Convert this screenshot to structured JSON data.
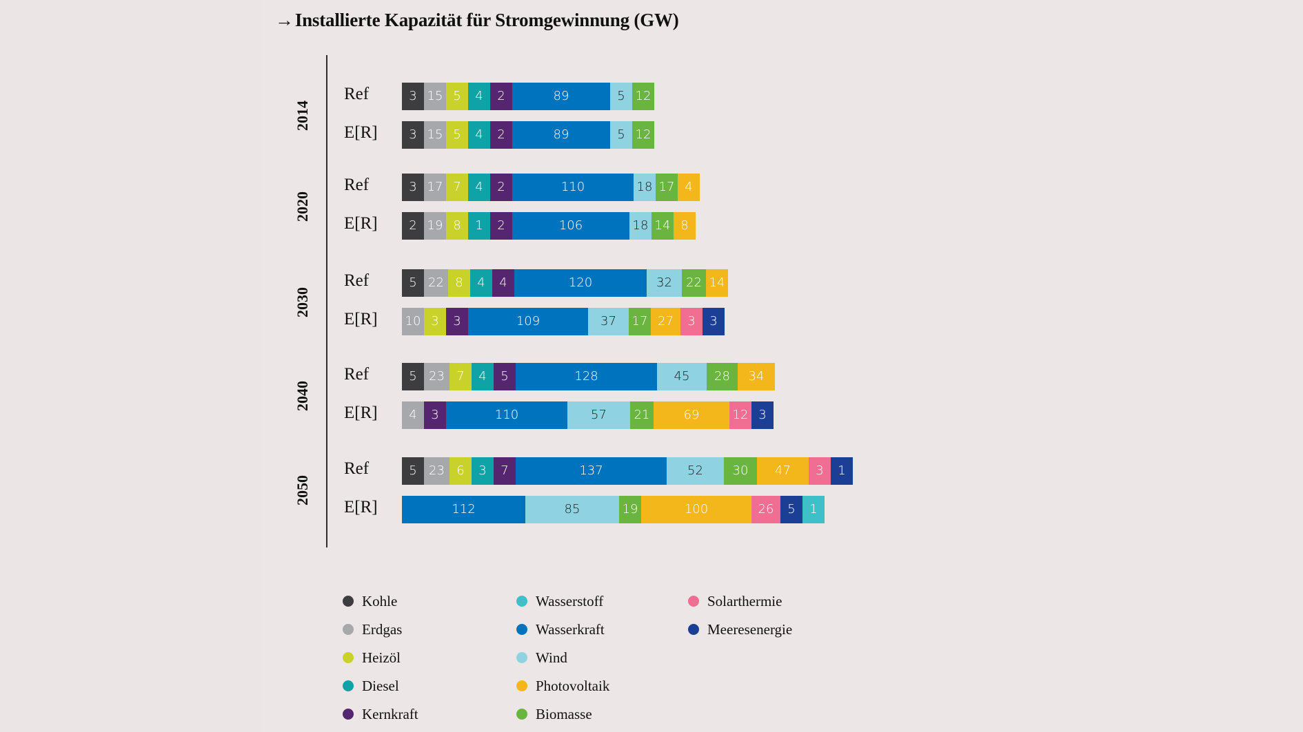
{
  "chart_data": {
    "type": "bar",
    "orientation": "horizontal-stacked",
    "title_arrow": "→",
    "title": "Installierte Kapazität für Stromgewinnung (GW)",
    "unit": "GW",
    "legend_position": "bottom",
    "technologies": [
      {
        "key": "kohle",
        "name": "Kohle",
        "color": "#3d3d3f",
        "text_color": "#ffffff"
      },
      {
        "key": "erdgas",
        "name": "Erdgas",
        "color": "#a7a8ab",
        "text_color": "#ffffff"
      },
      {
        "key": "heizoel",
        "name": "Heizöl",
        "color": "#c9d22a",
        "text_color": "#ffffff"
      },
      {
        "key": "diesel",
        "name": "Diesel",
        "color": "#0fa3a8",
        "text_color": "#ffffff"
      },
      {
        "key": "kernkraft",
        "name": "Kernkraft",
        "color": "#55256f",
        "text_color": "#ffffff"
      },
      {
        "key": "wasserstoff",
        "name": "Wasserstoff",
        "color": "#3fc0c8",
        "text_color": "#ffffff"
      },
      {
        "key": "wasserkraft",
        "name": "Wasserkraft",
        "color": "#0073bf",
        "text_color": "#ffffff"
      },
      {
        "key": "wind",
        "name": "Wind",
        "color": "#8fd3e3",
        "text_color": "#1a1a1a"
      },
      {
        "key": "photovoltaik",
        "name": "Photovoltaik",
        "color": "#f3b71b",
        "text_color": "#ffffff"
      },
      {
        "key": "biomasse",
        "name": "Biomasse",
        "color": "#6ab540",
        "text_color": "#ffffff"
      },
      {
        "key": "solarthermie",
        "name": "Solarthermie",
        "color": "#ef6e92",
        "text_color": "#ffffff"
      },
      {
        "key": "meeresenergie",
        "name": "Meeresenergie",
        "color": "#1b3f94",
        "text_color": "#ffffff"
      }
    ],
    "groups": [
      {
        "year": "2014",
        "rows": [
          {
            "scenario": "Ref",
            "segments": [
              {
                "tech": "kohle",
                "value": 3
              },
              {
                "tech": "erdgas",
                "value": 15
              },
              {
                "tech": "heizoel",
                "value": 5
              },
              {
                "tech": "diesel",
                "value": 4
              },
              {
                "tech": "kernkraft",
                "value": 2
              },
              {
                "tech": "wasserkraft",
                "value": 89
              },
              {
                "tech": "wind",
                "value": 5
              },
              {
                "tech": "biomasse",
                "value": 12
              }
            ]
          },
          {
            "scenario": "E[R]",
            "segments": [
              {
                "tech": "kohle",
                "value": 3
              },
              {
                "tech": "erdgas",
                "value": 15
              },
              {
                "tech": "heizoel",
                "value": 5
              },
              {
                "tech": "diesel",
                "value": 4
              },
              {
                "tech": "kernkraft",
                "value": 2
              },
              {
                "tech": "wasserkraft",
                "value": 89
              },
              {
                "tech": "wind",
                "value": 5
              },
              {
                "tech": "biomasse",
                "value": 12
              }
            ]
          }
        ]
      },
      {
        "year": "2020",
        "rows": [
          {
            "scenario": "Ref",
            "segments": [
              {
                "tech": "kohle",
                "value": 3
              },
              {
                "tech": "erdgas",
                "value": 17
              },
              {
                "tech": "heizoel",
                "value": 7
              },
              {
                "tech": "diesel",
                "value": 4
              },
              {
                "tech": "kernkraft",
                "value": 2
              },
              {
                "tech": "wasserkraft",
                "value": 110
              },
              {
                "tech": "wind",
                "value": 18
              },
              {
                "tech": "biomasse",
                "value": 17
              },
              {
                "tech": "photovoltaik",
                "value": 4
              }
            ]
          },
          {
            "scenario": "E[R]",
            "segments": [
              {
                "tech": "kohle",
                "value": 2
              },
              {
                "tech": "erdgas",
                "value": 19
              },
              {
                "tech": "heizoel",
                "value": 8
              },
              {
                "tech": "diesel",
                "value": 1
              },
              {
                "tech": "kernkraft",
                "value": 2
              },
              {
                "tech": "wasserkraft",
                "value": 106
              },
              {
                "tech": "wind",
                "value": 18
              },
              {
                "tech": "biomasse",
                "value": 14
              },
              {
                "tech": "photovoltaik",
                "value": 8
              }
            ]
          }
        ]
      },
      {
        "year": "2030",
        "rows": [
          {
            "scenario": "Ref",
            "segments": [
              {
                "tech": "kohle",
                "value": 5
              },
              {
                "tech": "erdgas",
                "value": 22
              },
              {
                "tech": "heizoel",
                "value": 8
              },
              {
                "tech": "diesel",
                "value": 4
              },
              {
                "tech": "kernkraft",
                "value": 4
              },
              {
                "tech": "wasserkraft",
                "value": 120
              },
              {
                "tech": "wind",
                "value": 32
              },
              {
                "tech": "biomasse",
                "value": 22
              },
              {
                "tech": "photovoltaik",
                "value": 14
              }
            ]
          },
          {
            "scenario": "E[R]",
            "segments": [
              {
                "tech": "erdgas",
                "value": 10
              },
              {
                "tech": "heizoel",
                "value": 3
              },
              {
                "tech": "kernkraft",
                "value": 3
              },
              {
                "tech": "wasserkraft",
                "value": 109
              },
              {
                "tech": "wind",
                "value": 37
              },
              {
                "tech": "biomasse",
                "value": 17
              },
              {
                "tech": "photovoltaik",
                "value": 27
              },
              {
                "tech": "solarthermie",
                "value": 3
              },
              {
                "tech": "meeresenergie",
                "value": 3
              }
            ]
          }
        ]
      },
      {
        "year": "2040",
        "rows": [
          {
            "scenario": "Ref",
            "segments": [
              {
                "tech": "kohle",
                "value": 5
              },
              {
                "tech": "erdgas",
                "value": 23
              },
              {
                "tech": "heizoel",
                "value": 7
              },
              {
                "tech": "diesel",
                "value": 4
              },
              {
                "tech": "kernkraft",
                "value": 5
              },
              {
                "tech": "wasserkraft",
                "value": 128
              },
              {
                "tech": "wind",
                "value": 45
              },
              {
                "tech": "biomasse",
                "value": 28
              },
              {
                "tech": "photovoltaik",
                "value": 34
              }
            ]
          },
          {
            "scenario": "E[R]",
            "segments": [
              {
                "tech": "erdgas",
                "value": 4
              },
              {
                "tech": "kernkraft",
                "value": 3
              },
              {
                "tech": "wasserkraft",
                "value": 110
              },
              {
                "tech": "wind",
                "value": 57
              },
              {
                "tech": "biomasse",
                "value": 21
              },
              {
                "tech": "photovoltaik",
                "value": 69
              },
              {
                "tech": "solarthermie",
                "value": 12
              },
              {
                "tech": "meeresenergie",
                "value": 3
              }
            ]
          }
        ]
      },
      {
        "year": "2050",
        "rows": [
          {
            "scenario": "Ref",
            "segments": [
              {
                "tech": "kohle",
                "value": 5
              },
              {
                "tech": "erdgas",
                "value": 23
              },
              {
                "tech": "heizoel",
                "value": 6
              },
              {
                "tech": "diesel",
                "value": 3
              },
              {
                "tech": "kernkraft",
                "value": 7
              },
              {
                "tech": "wasserkraft",
                "value": 137
              },
              {
                "tech": "wind",
                "value": 52
              },
              {
                "tech": "biomasse",
                "value": 30
              },
              {
                "tech": "photovoltaik",
                "value": 47
              },
              {
                "tech": "solarthermie",
                "value": 3
              },
              {
                "tech": "meeresenergie",
                "value": 1
              }
            ]
          },
          {
            "scenario": "E[R]",
            "segments": [
              {
                "tech": "wasserkraft",
                "value": 112
              },
              {
                "tech": "wind",
                "value": 85
              },
              {
                "tech": "biomasse",
                "value": 19
              },
              {
                "tech": "photovoltaik",
                "value": 100
              },
              {
                "tech": "solarthermie",
                "value": 26
              },
              {
                "tech": "meeresenergie",
                "value": 5
              },
              {
                "tech": "wasserstoff",
                "value": 1
              }
            ]
          }
        ]
      }
    ],
    "legend": {
      "columns": [
        [
          "kohle",
          "erdgas",
          "heizoel",
          "diesel",
          "kernkraft"
        ],
        [
          "wasserstoff",
          "wasserkraft",
          "wind",
          "photovoltaik",
          "biomasse"
        ],
        [
          "solarthermie",
          "meeresenergie"
        ]
      ]
    }
  }
}
